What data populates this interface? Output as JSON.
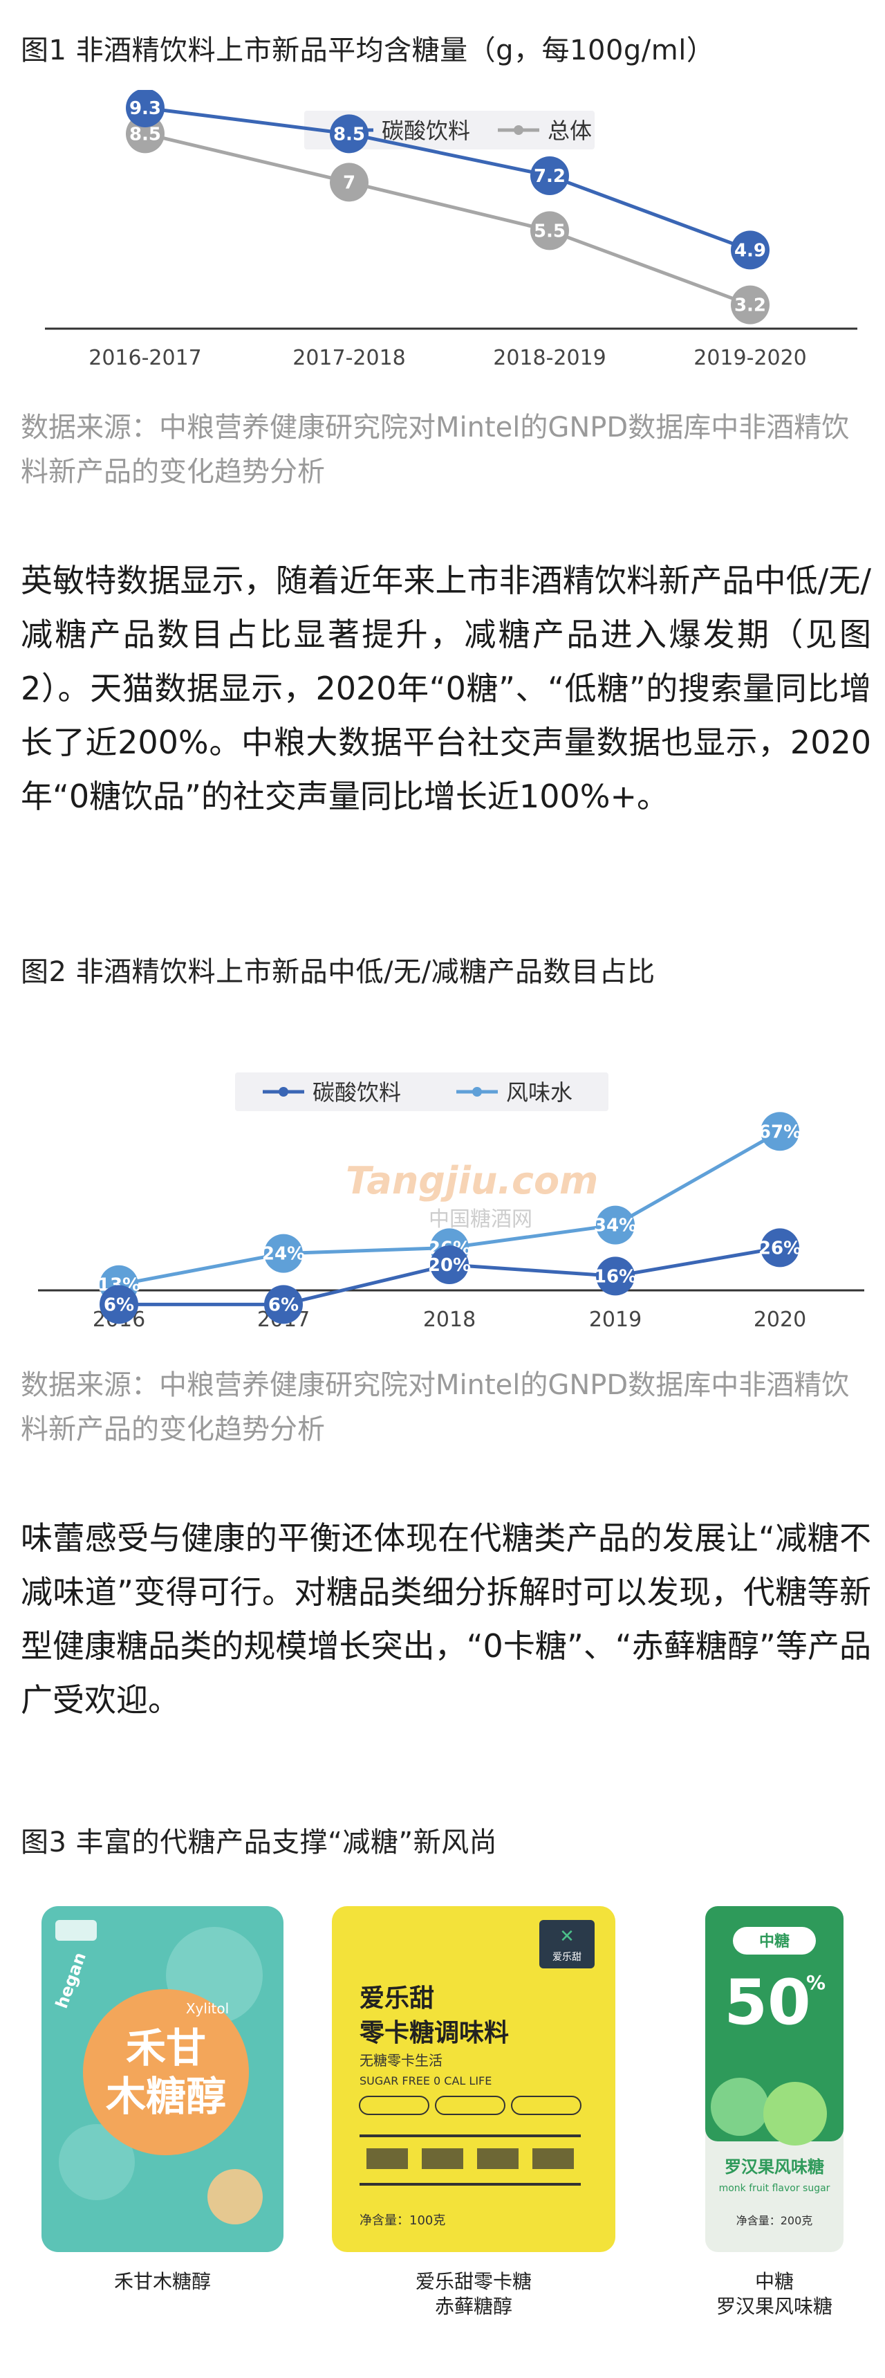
{
  "fig1": {
    "caption": "图1 非酒精饮料上市新品平均含糖量（g，每100g/ml）",
    "source": "数据来源：中粮营养健康研究院对Mintel的GNPD数据库中非酒精饮料新产品的变化趋势分析"
  },
  "para1": "英敏特数据显示，随着近年来上市非酒精饮料新产品中低/无/减糖产品数目占比显著提升，减糖产品进入爆发期（见图2）。天猫数据显示，2020年“0糖”、“低糖”的搜索量同比增长了近200%。中粮大数据平台社交声量数据也显示，2020年“0糖饮品”的社交声量同比增长近100%+。",
  "fig2": {
    "caption": "图2 非酒精饮料上市新品中低/无/减糖产品数目占比",
    "watermark_brand": "Tangjiu.com",
    "watermark_cn": "中国糖酒网",
    "source": "数据来源：中粮营养健康研究院对Mintel的GNPD数据库中非酒精饮料新产品的变化趋势分析"
  },
  "para2": "味蕾感受与健康的平衡还体现在代糖类产品的发展让“减糖不减味道”变得可行。对糖品类细分拆解时可以发现，代糖等新型健康糖品类的规模增长突出，“0卡糖”、“赤藓糖醇”等产品广受欢迎。",
  "fig3": {
    "caption": "图3 丰富的代糖产品支撑“减糖”新风尚",
    "products": [
      {
        "label": "禾甘木糖醇",
        "pack_title": "禾甘\n木糖醇",
        "pack_brand": "hegan",
        "pack_sub": "Xylitol",
        "color": "#5cc3b6"
      },
      {
        "label": "爱乐甜零卡糖\n赤藓糖醇",
        "pack_title1": "爱乐甜",
        "pack_title2": "零卡糖调味料",
        "pack_sub1": "无糖零卡生活",
        "pack_sub2": "SUGAR FREE  0 CAL LIFE",
        "pack_brand": "爱乐甜",
        "pack_weight": "净含量：100克",
        "color": "#f3e23a"
      },
      {
        "label": "中糖\n罗汉果风味糖",
        "pack_brand": "中糖",
        "pack_big": "50",
        "pack_pct": "%",
        "pack_title": "罗汉果风味糖",
        "pack_en": "monk fruit flavor sugar",
        "pack_weight": "净含量：200克",
        "color": "#2e9a5a"
      }
    ]
  },
  "chart_data": [
    {
      "type": "line",
      "title": "",
      "categories": [
        "2016-2017",
        "2017-2018",
        "2018-2019",
        "2019-2020"
      ],
      "series": [
        {
          "name": "碳酸饮料",
          "values": [
            9.3,
            8.5,
            7.2,
            4.9
          ],
          "color": "#3a66b5"
        },
        {
          "name": "总体",
          "values": [
            8.5,
            7,
            5.5,
            3.2
          ],
          "color": "#a6a6a6"
        }
      ],
      "ylim": [
        0,
        12
      ],
      "legend": "top-center",
      "grid": false
    },
    {
      "type": "line",
      "title": "",
      "categories": [
        "2016",
        "2017",
        "2018",
        "2019",
        "2020"
      ],
      "series": [
        {
          "name": "碳酸饮料",
          "values": [
            6,
            6,
            20,
            16,
            26
          ],
          "labels": [
            "6%",
            "6%",
            "20%",
            "16%",
            "26%"
          ],
          "color": "#3a66b5"
        },
        {
          "name": "风味水",
          "values": [
            13,
            24,
            26,
            34,
            67
          ],
          "labels": [
            "13%",
            "24%",
            "26%",
            "34%",
            "67%"
          ],
          "color": "#5fa0d8"
        }
      ],
      "ylim": [
        0,
        80
      ],
      "legend": "top-center",
      "grid": false
    }
  ]
}
